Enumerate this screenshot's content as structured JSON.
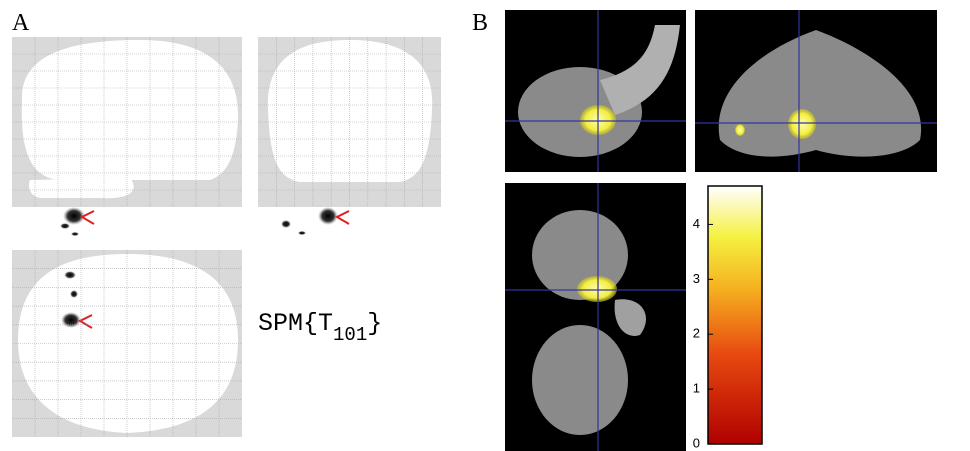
{
  "panels": {
    "A": {
      "label": "A",
      "spm": {
        "prefix": "SPM{T",
        "subscript": "101",
        "suffix": "}"
      }
    },
    "B": {
      "label": "B",
      "colorbar": {
        "lim": [
          0,
          4.7
        ],
        "ticks": [
          0,
          1,
          2,
          3,
          4
        ]
      }
    }
  }
}
